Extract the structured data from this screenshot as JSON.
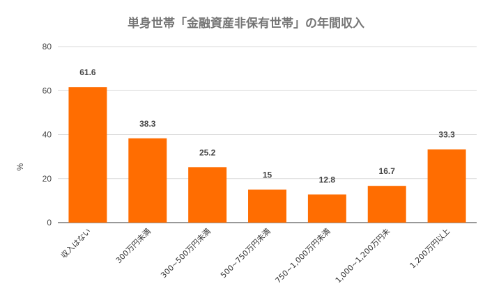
{
  "chart_data": {
    "type": "bar",
    "title": "単身世帯「金融資産非保有世帯」の年間収入",
    "xlabel": "",
    "ylabel": "%",
    "ylim": [
      0,
      80
    ],
    "yticks": [
      0,
      20,
      40,
      60,
      80
    ],
    "grid": true,
    "legend": "none",
    "bar_color": "#ff6d01",
    "categories": [
      "収入はない",
      "300万円未満",
      "300~500万円未満",
      "500~750万円未満",
      "750~1,000万円未満",
      "1,000~1,200万円未",
      "1,200万円以上"
    ],
    "values": [
      61.6,
      38.3,
      25.2,
      15,
      12.8,
      16.7,
      33.3
    ],
    "data_labels": [
      "61.6",
      "38.3",
      "25.2",
      "15",
      "12.8",
      "16.7",
      "33.3"
    ]
  }
}
